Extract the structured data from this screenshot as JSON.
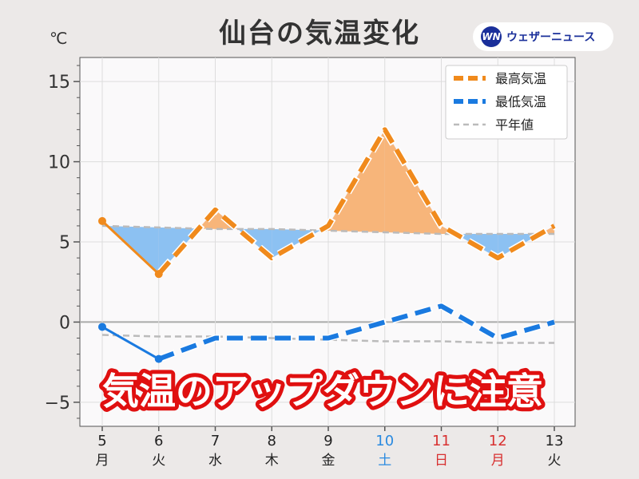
{
  "title": "仙台の気温変化",
  "unit": "℃",
  "logo": {
    "mark": "WN",
    "text": "ウェザーニュース"
  },
  "banner": "気温のアップダウンに注意",
  "colors": {
    "high": "#f08a1c",
    "low": "#1a7ae0",
    "normal": "#bbbbbb",
    "warm_fill": "#f7b57a",
    "cold_fill": "#8cc1f2",
    "weekday": "#222222",
    "saturday": "#2a8ae0",
    "sunday_holiday": "#d83030"
  },
  "chart_data": {
    "type": "line",
    "title": "仙台の気温変化",
    "ylabel": "℃",
    "ylim": [
      -6.5,
      16.5
    ],
    "yticks": [
      -5,
      0,
      5,
      10,
      15
    ],
    "grid": true,
    "legend_position": "top-right",
    "x": [
      {
        "day": "5",
        "weekday": "月",
        "type": "weekday"
      },
      {
        "day": "6",
        "weekday": "火",
        "type": "weekday"
      },
      {
        "day": "7",
        "weekday": "水",
        "type": "weekday"
      },
      {
        "day": "8",
        "weekday": "木",
        "type": "weekday"
      },
      {
        "day": "9",
        "weekday": "金",
        "type": "weekday"
      },
      {
        "day": "10",
        "weekday": "土",
        "type": "saturday"
      },
      {
        "day": "11",
        "weekday": "日",
        "type": "sunday_holiday"
      },
      {
        "day": "12",
        "weekday": "月",
        "type": "sunday_holiday"
      },
      {
        "day": "13",
        "weekday": "火",
        "type": "weekday"
      }
    ],
    "forecast_start_index": 1,
    "series": [
      {
        "name": "最高気温",
        "values": [
          6.3,
          3.0,
          7.0,
          4.0,
          6.0,
          12.0,
          6.0,
          4.0,
          6.0
        ]
      },
      {
        "name": "最低気温",
        "values": [
          -0.3,
          -2.3,
          -1.0,
          -1.0,
          -1.0,
          0.0,
          1.0,
          -1.0,
          0.0
        ]
      },
      {
        "name": "平年値",
        "values": [
          6.0,
          5.9,
          5.8,
          5.8,
          5.7,
          5.6,
          5.5,
          5.5,
          5.5
        ]
      },
      {
        "name": "平年値",
        "values": [
          -0.8,
          -0.9,
          -0.9,
          -1.0,
          -1.1,
          -1.2,
          -1.2,
          -1.3,
          -1.3
        ]
      }
    ]
  }
}
